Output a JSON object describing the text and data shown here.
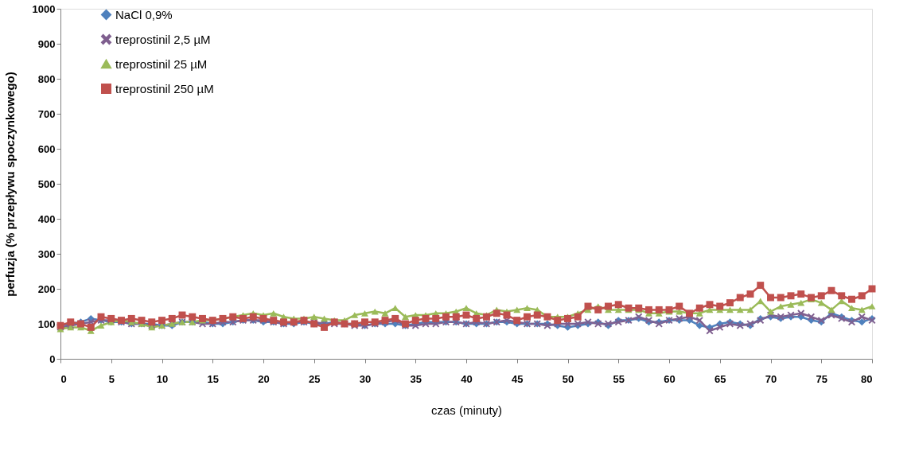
{
  "chart_data": {
    "type": "line",
    "xlabel": "czas (minuty)",
    "ylabel": "perfuzja (% przepływu spoczynkowego)",
    "x": [
      0,
      1,
      2,
      3,
      4,
      5,
      6,
      7,
      8,
      9,
      10,
      11,
      12,
      13,
      14,
      15,
      16,
      17,
      18,
      19,
      20,
      21,
      22,
      23,
      24,
      25,
      26,
      27,
      28,
      29,
      30,
      31,
      32,
      33,
      34,
      35,
      36,
      37,
      38,
      39,
      40,
      41,
      42,
      43,
      44,
      45,
      46,
      47,
      48,
      49,
      50,
      51,
      52,
      53,
      54,
      55,
      56,
      57,
      58,
      59,
      60,
      61,
      62,
      63,
      64,
      65,
      66,
      67,
      68,
      69,
      70,
      71,
      72,
      73,
      74,
      75,
      76,
      77,
      78,
      79,
      80
    ],
    "xlim": [
      0,
      80
    ],
    "xticks": [
      0,
      5,
      10,
      15,
      20,
      25,
      30,
      35,
      40,
      45,
      50,
      55,
      60,
      65,
      70,
      75,
      80
    ],
    "ylim": [
      0,
      1000
    ],
    "yticks": [
      0,
      100,
      200,
      300,
      400,
      500,
      600,
      700,
      800,
      900,
      1000
    ],
    "grid": false,
    "legend": "top left",
    "series": [
      {
        "name": "NaCl 0,9%",
        "color": "#4f81bd",
        "marker": "diamond",
        "values": [
          95,
          100,
          105,
          115,
          110,
          105,
          105,
          100,
          100,
          100,
          95,
          95,
          105,
          105,
          105,
          100,
          100,
          105,
          110,
          110,
          105,
          105,
          100,
          100,
          105,
          100,
          100,
          105,
          100,
          100,
          95,
          100,
          100,
          100,
          95,
          100,
          105,
          105,
          105,
          105,
          100,
          100,
          100,
          105,
          105,
          100,
          100,
          100,
          100,
          95,
          90,
          95,
          100,
          105,
          95,
          110,
          110,
          115,
          105,
          105,
          110,
          110,
          110,
          95,
          90,
          100,
          105,
          100,
          95,
          115,
          120,
          115,
          120,
          120,
          110,
          105,
          130,
          120,
          110,
          105,
          115
        ]
      },
      {
        "name": "treprostinil 2,5 µM",
        "color": "#7f5f8f",
        "marker": "cross",
        "values": [
          90,
          95,
          100,
          105,
          110,
          110,
          105,
          100,
          100,
          95,
          95,
          100,
          105,
          105,
          100,
          100,
          105,
          105,
          110,
          110,
          110,
          105,
          100,
          105,
          105,
          105,
          100,
          100,
          100,
          95,
          95,
          100,
          105,
          110,
          95,
          95,
          100,
          100,
          105,
          105,
          100,
          105,
          100,
          105,
          110,
          105,
          100,
          100,
          95,
          100,
          100,
          100,
          105,
          100,
          100,
          105,
          110,
          120,
          110,
          100,
          110,
          115,
          120,
          110,
          80,
          90,
          100,
          95,
          100,
          110,
          125,
          120,
          125,
          130,
          120,
          110,
          125,
          115,
          105,
          120,
          110
        ]
      },
      {
        "name": "treprostinil 25 µM",
        "color": "#9bbb59",
        "marker": "triangle",
        "values": [
          85,
          90,
          90,
          80,
          95,
          105,
          110,
          105,
          100,
          90,
          95,
          100,
          105,
          105,
          110,
          110,
          115,
          120,
          125,
          130,
          125,
          130,
          120,
          115,
          115,
          120,
          115,
          110,
          110,
          125,
          130,
          135,
          130,
          145,
          120,
          125,
          125,
          130,
          130,
          135,
          145,
          130,
          125,
          140,
          135,
          140,
          145,
          140,
          120,
          120,
          120,
          130,
          140,
          150,
          140,
          140,
          140,
          140,
          130,
          130,
          135,
          135,
          130,
          130,
          140,
          140,
          140,
          140,
          140,
          165,
          135,
          150,
          155,
          160,
          170,
          160,
          140,
          165,
          145,
          140,
          150
        ]
      },
      {
        "name": "treprostinil 250 µM",
        "color": "#c0504d",
        "marker": "square",
        "values": [
          95,
          105,
          100,
          90,
          120,
          115,
          110,
          115,
          110,
          105,
          110,
          115,
          125,
          120,
          115,
          110,
          115,
          120,
          115,
          120,
          115,
          110,
          105,
          105,
          110,
          100,
          90,
          105,
          100,
          100,
          105,
          105,
          110,
          115,
          100,
          110,
          115,
          115,
          120,
          120,
          125,
          115,
          120,
          130,
          125,
          110,
          120,
          125,
          120,
          110,
          115,
          120,
          150,
          140,
          150,
          155,
          145,
          145,
          140,
          140,
          140,
          150,
          130,
          145,
          155,
          150,
          160,
          175,
          185,
          210,
          175,
          175,
          180,
          185,
          175,
          180,
          195,
          180,
          170,
          180,
          200
        ]
      }
    ]
  }
}
